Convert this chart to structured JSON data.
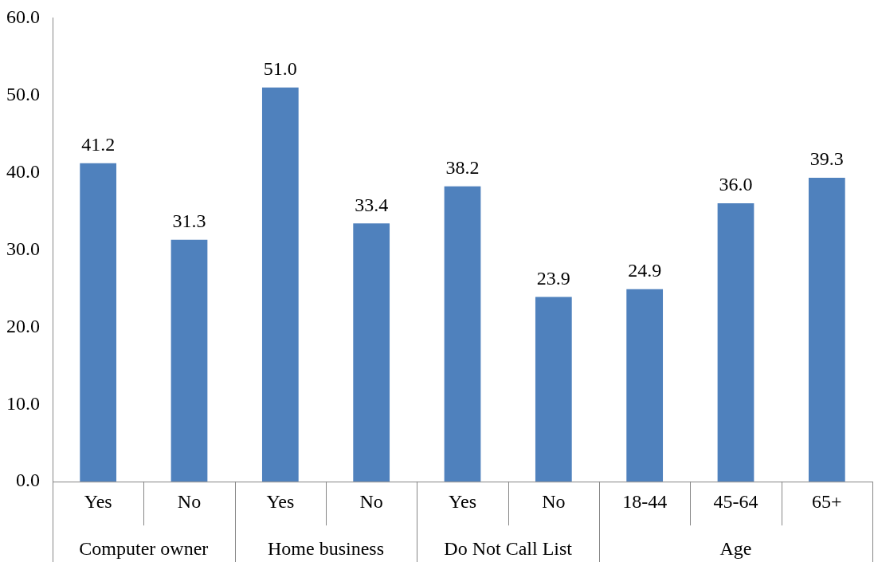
{
  "chart_data": {
    "type": "bar",
    "categories": [
      "Yes",
      "No",
      "Yes",
      "No",
      "Yes",
      "No",
      "18-44",
      "45-64",
      "65+"
    ],
    "values": [
      41.2,
      31.3,
      51.0,
      33.4,
      38.2,
      23.9,
      24.9,
      36.0,
      39.3
    ],
    "value_labels": [
      "41.2",
      "31.3",
      "51.0",
      "33.4",
      "38.2",
      "23.9",
      "24.9",
      "36.0",
      "39.3"
    ],
    "color": "#4f81bd",
    "ylim": [
      0,
      60
    ],
    "yticks": [
      {
        "value": 0,
        "label": "0.0"
      },
      {
        "value": 10,
        "label": "10.0"
      },
      {
        "value": 20,
        "label": "20.0"
      },
      {
        "value": 30,
        "label": "30.0"
      },
      {
        "value": 40,
        "label": "40.0"
      },
      {
        "value": 50,
        "label": "50.0"
      },
      {
        "value": 60,
        "label": "60.0"
      }
    ],
    "annotations": [
      "Computer owner",
      "Home business",
      "Do Not Call List",
      "Age"
    ],
    "grid": false,
    "legend": false
  }
}
